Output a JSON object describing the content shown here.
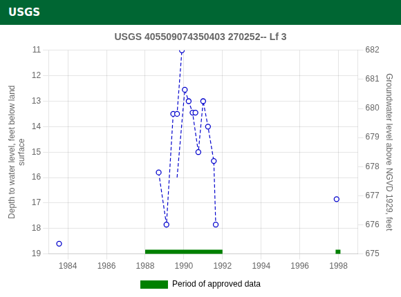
{
  "chart_data": {
    "type": "scatter",
    "title": "USGS 405509074350403 270252-- Lf 3",
    "annotations": [
      "USGS"
    ],
    "ylabel": "Depth to water level, feet below land\nsurface",
    "y2label": "Groundwater level above NGVD 1929, feet",
    "xlim": [
      1983.0,
      1999.0
    ],
    "xticks": [
      1984,
      1986,
      1988,
      1990,
      1992,
      1994,
      1996,
      1998
    ],
    "ylim": [
      19.0,
      11.0
    ],
    "yticks": [
      11.0,
      12.0,
      13.0,
      14.0,
      15.0,
      16.0,
      17.0,
      18.0,
      19.0
    ],
    "y2lim": [
      675.0,
      682.0
    ],
    "y2ticks": [
      675.0,
      676.0,
      677.0,
      678.0,
      679.0,
      680.0,
      681.0,
      682.0
    ],
    "grid": true,
    "legend": "bottom",
    "series": [
      {
        "type": "line",
        "line_style": "dashed",
        "color": "#0000cc",
        "x": [
          1988.7,
          1989.1,
          1989.45,
          1989.65,
          1989.9
        ],
        "values": [
          15.8,
          17.85,
          13.5,
          13.5,
          11.0
        ]
      },
      {
        "type": "line",
        "line_style": "dashed",
        "color": "#0000cc",
        "x": [
          1989.65,
          1990.05,
          1990.25,
          1990.45,
          1990.75,
          1991.0,
          1991.25,
          1991.55,
          1991.65
        ],
        "values": [
          16.0,
          12.55,
          13.0,
          13.45,
          15.0,
          13.0,
          14.0,
          15.35,
          17.85
        ]
      },
      {
        "type": "scatter",
        "marker": "open_circle",
        "color": "#0000cc",
        "x": [
          1983.55,
          1988.7,
          1989.1,
          1989.45,
          1989.65,
          1989.9,
          1990.05,
          1990.25,
          1990.45,
          1990.6,
          1990.75,
          1991.0,
          1991.25,
          1991.55,
          1991.65,
          1997.9
        ],
        "values": [
          18.6,
          15.8,
          17.85,
          13.5,
          13.5,
          11.0,
          12.55,
          13.0,
          13.45,
          13.45,
          15.0,
          13.0,
          14.0,
          15.35,
          17.85,
          16.85
        ]
      },
      {
        "name": "Period of approved data",
        "type": "bar",
        "orientation": "horizontal",
        "color": "#008000",
        "ranges": [
          [
            1988.0,
            1992.0
          ],
          [
            1997.85,
            1998.1
          ]
        ],
        "values": [
          19.0,
          19.0
        ]
      }
    ]
  }
}
